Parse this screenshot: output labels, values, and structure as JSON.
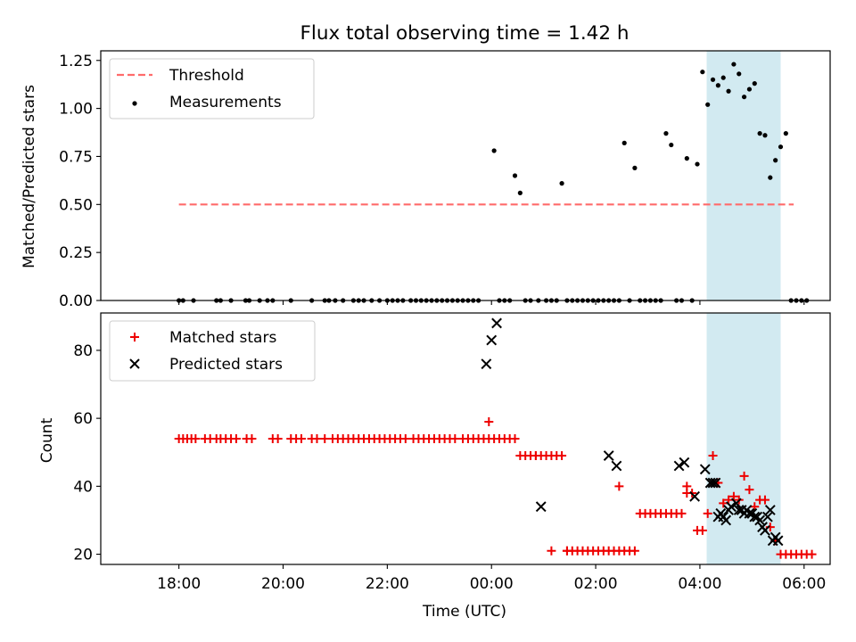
{
  "figure": {
    "title": "Flux total observing time = 1.42 h",
    "xlabel": "Time (UTC)",
    "x_tick_labels": [
      "18:00",
      "20:00",
      "22:00",
      "00:00",
      "02:00",
      "04:00",
      "06:00"
    ],
    "colors": {
      "shade": "#add8e6",
      "threshold": "#ff6b6b",
      "matched": "#ee0000",
      "predicted": "#000000",
      "measurements": "#000000"
    }
  },
  "chart_data": [
    {
      "type": "scatter",
      "panel": "top",
      "ylabel": "Matched/Predicted stars",
      "x_unit": "hours since 18:00 UTC",
      "xlim": [
        -1.5,
        12.5
      ],
      "ylim": [
        0.0,
        1.3
      ],
      "yticks": [
        0.0,
        0.25,
        0.5,
        0.75,
        1.0,
        1.25
      ],
      "ytick_labels": [
        "0.00",
        "0.25",
        "0.50",
        "0.75",
        "1.00",
        "1.25"
      ],
      "highlight_span": [
        10.13,
        11.55
      ],
      "threshold": {
        "name": "Threshold",
        "y": 0.5,
        "x_range": [
          0.0,
          11.8
        ]
      },
      "legend": [
        "Threshold",
        "Measurements"
      ],
      "series": [
        {
          "name": "Measurements",
          "x": [
            0.0,
            0.08,
            0.28,
            0.72,
            0.8,
            1.0,
            1.28,
            1.35,
            1.55,
            1.7,
            1.8,
            2.15,
            2.55,
            2.8,
            2.88,
            3.0,
            3.15,
            3.35,
            3.45,
            3.55,
            3.7,
            3.85,
            4.0,
            4.1,
            4.2,
            4.3,
            4.45,
            4.55,
            4.65,
            4.75,
            4.85,
            4.95,
            5.05,
            5.15,
            5.25,
            5.35,
            5.45,
            5.55,
            5.65,
            5.75,
            6.05,
            6.15,
            6.25,
            6.35,
            6.45,
            6.55,
            6.65,
            6.75,
            6.9,
            7.05,
            7.15,
            7.25,
            7.35,
            7.45,
            7.55,
            7.65,
            7.75,
            7.85,
            7.95,
            8.05,
            8.15,
            8.25,
            8.35,
            8.45,
            8.55,
            8.65,
            8.75,
            8.85,
            8.95,
            9.05,
            9.15,
            9.25,
            9.35,
            9.45,
            9.55,
            9.65,
            9.75,
            9.85,
            9.95,
            10.05,
            10.15,
            10.25,
            10.35,
            10.45,
            10.55,
            10.65,
            10.75,
            10.85,
            10.95,
            11.05,
            11.15,
            11.25,
            11.35,
            11.45,
            11.55,
            11.65,
            11.75,
            11.85,
            11.95,
            12.05
          ],
          "y": [
            0.0,
            0.0,
            0.0,
            0.0,
            0.0,
            0.0,
            0.0,
            0.0,
            0.0,
            0.0,
            0.0,
            0.0,
            0.0,
            0.0,
            0.0,
            0.0,
            0.0,
            0.0,
            0.0,
            0.0,
            0.0,
            0.0,
            0.0,
            0.0,
            0.0,
            0.0,
            0.0,
            0.0,
            0.0,
            0.0,
            0.0,
            0.0,
            0.0,
            0.0,
            0.0,
            0.0,
            0.0,
            0.0,
            0.0,
            0.0,
            0.78,
            0.0,
            0.0,
            0.0,
            0.65,
            0.56,
            0.0,
            0.0,
            0.0,
            0.0,
            0.0,
            0.0,
            0.61,
            0.0,
            0.0,
            0.0,
            0.0,
            0.0,
            0.0,
            0.0,
            0.0,
            0.0,
            0.0,
            0.0,
            0.82,
            0.0,
            0.69,
            0.0,
            0.0,
            0.0,
            0.0,
            0.0,
            0.87,
            0.81,
            0.0,
            0.0,
            0.74,
            0.0,
            0.71,
            1.19,
            1.02,
            1.15,
            1.12,
            1.16,
            1.09,
            1.23,
            1.18,
            1.06,
            1.1,
            1.13,
            0.87,
            0.86,
            0.64,
            0.73,
            0.8,
            0.87,
            0.0,
            0.0,
            0.0,
            0.0
          ]
        }
      ]
    },
    {
      "type": "scatter",
      "panel": "bottom",
      "ylabel": "Count",
      "x_unit": "hours since 18:00 UTC",
      "xlim": [
        -1.5,
        12.5
      ],
      "ylim": [
        17,
        91
      ],
      "yticks": [
        20,
        40,
        60,
        80
      ],
      "ytick_labels": [
        "20",
        "40",
        "60",
        "80"
      ],
      "highlight_span": [
        10.13,
        11.55
      ],
      "legend": [
        "Matched stars",
        "Predicted stars"
      ],
      "series": [
        {
          "name": "Matched stars",
          "marker": "plus",
          "x": [
            0.0,
            0.08,
            0.16,
            0.24,
            0.32,
            0.5,
            0.6,
            0.72,
            0.8,
            0.9,
            1.0,
            1.1,
            1.3,
            1.4,
            1.8,
            1.9,
            2.15,
            2.25,
            2.35,
            2.55,
            2.65,
            2.8,
            2.95,
            3.05,
            3.15,
            3.25,
            3.35,
            3.45,
            3.55,
            3.65,
            3.75,
            3.85,
            3.95,
            4.05,
            4.15,
            4.25,
            4.35,
            4.5,
            4.6,
            4.7,
            4.8,
            4.9,
            5.0,
            5.1,
            5.2,
            5.3,
            5.45,
            5.55,
            5.65,
            5.75,
            5.85,
            5.95,
            6.05,
            6.15,
            6.25,
            6.35,
            6.45,
            6.55,
            6.65,
            6.75,
            6.85,
            6.95,
            7.05,
            7.15,
            7.25,
            7.35,
            7.45,
            7.55,
            7.65,
            7.75,
            7.85,
            7.95,
            8.05,
            8.15,
            8.25,
            8.35,
            8.45,
            8.55,
            8.65,
            8.75,
            8.85,
            8.95,
            9.05,
            9.15,
            9.25,
            9.35,
            9.45,
            9.55,
            9.65,
            9.75,
            9.85,
            9.95,
            10.05,
            10.15,
            10.25,
            10.35,
            10.45,
            10.55,
            10.65,
            10.75,
            10.85,
            10.95,
            11.05,
            11.15,
            11.25,
            11.35,
            11.45,
            11.55,
            11.65,
            11.75,
            11.85,
            11.95,
            12.05,
            12.15,
            5.95,
            7.45,
            6.85,
            7.15,
            8.45,
            9.75
          ],
          "y": [
            54,
            54,
            54,
            54,
            54,
            54,
            54,
            54,
            54,
            54,
            54,
            54,
            54,
            54,
            54,
            54,
            54,
            54,
            54,
            54,
            54,
            54,
            54,
            54,
            54,
            54,
            54,
            54,
            54,
            54,
            54,
            54,
            54,
            54,
            54,
            54,
            54,
            54,
            54,
            54,
            54,
            54,
            54,
            54,
            54,
            54,
            54,
            54,
            54,
            54,
            54,
            54,
            54,
            54,
            54,
            54,
            54,
            49,
            49,
            49,
            49,
            49,
            49,
            49,
            49,
            49,
            21,
            21,
            21,
            21,
            21,
            21,
            21,
            21,
            21,
            21,
            21,
            21,
            21,
            21,
            32,
            32,
            32,
            32,
            32,
            32,
            32,
            32,
            32,
            38,
            38,
            27,
            27,
            32,
            49,
            41,
            35,
            36,
            37,
            36,
            43,
            39,
            34,
            36,
            36,
            28,
            24,
            20,
            20,
            20,
            20,
            20,
            20,
            20,
            59,
            21,
            49,
            21,
            40,
            40
          ]
        },
        {
          "name": "Predicted stars",
          "marker": "cross",
          "x": [
            5.9,
            6.0,
            6.1,
            6.95,
            8.25,
            8.4,
            9.6,
            9.7,
            9.9,
            10.1,
            10.2,
            10.25,
            10.3,
            10.35,
            10.4,
            10.45,
            10.5,
            10.55,
            10.6,
            10.7,
            10.75,
            10.8,
            10.85,
            10.9,
            10.95,
            11.0,
            11.05,
            11.1,
            11.15,
            11.2,
            11.25,
            11.3,
            11.35,
            11.4,
            11.45,
            11.5
          ],
          "y": [
            76,
            83,
            88,
            34,
            49,
            46,
            46,
            47,
            37,
            45,
            41,
            41,
            41,
            31,
            32,
            31,
            30,
            33,
            34,
            35,
            33,
            33,
            32,
            33,
            32,
            32,
            31,
            31,
            30,
            28,
            27,
            31,
            33,
            24,
            25,
            24
          ]
        }
      ]
    }
  ]
}
